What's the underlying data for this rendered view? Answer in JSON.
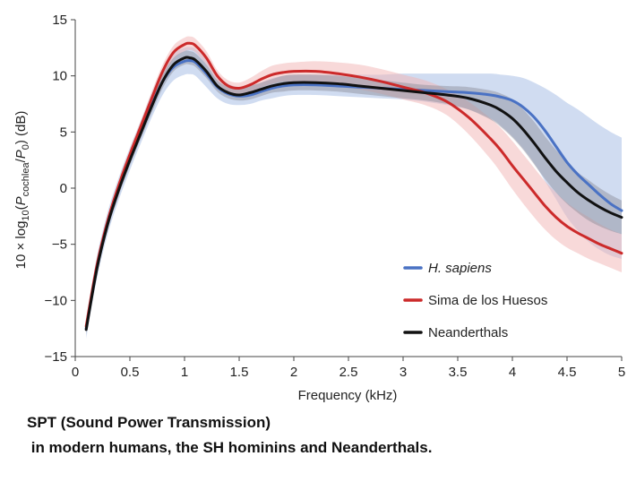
{
  "chart_data": {
    "type": "line",
    "title": "",
    "xlabel": "Frequency (kHz)",
    "ylabel": "10 × log10(Pcochlea/P0) (dB)",
    "xlim": [
      0,
      5
    ],
    "ylim": [
      -15,
      15
    ],
    "xticks": [
      0,
      0.5,
      1,
      1.5,
      2,
      2.5,
      3,
      3.5,
      4,
      4.5,
      5
    ],
    "xtick_labels": [
      "0",
      "0.5",
      "1",
      "1.5",
      "2",
      "2.5",
      "3",
      "3.5",
      "4",
      "4.5",
      "5"
    ],
    "yticks": [
      15,
      10,
      5,
      0,
      -5,
      -10,
      -15
    ],
    "ytick_labels": [
      "15",
      "10",
      "5",
      "0",
      "−5",
      "−10",
      "−15"
    ],
    "legend_position": "bottom-right",
    "series": [
      {
        "name": "H. sapiens",
        "color": "#4a72c4",
        "band_color": "#a9bfe6",
        "x": [
          0.1,
          0.2,
          0.3,
          0.4,
          0.5,
          0.6,
          0.7,
          0.8,
          0.9,
          1.0,
          1.05,
          1.1,
          1.2,
          1.3,
          1.4,
          1.5,
          1.6,
          1.7,
          1.8,
          1.9,
          2.0,
          2.2,
          2.4,
          2.6,
          2.8,
          3.0,
          3.2,
          3.4,
          3.6,
          3.8,
          3.9,
          4.0,
          4.1,
          4.2,
          4.3,
          4.4,
          4.5,
          4.6,
          4.7,
          4.8,
          4.9,
          5.0
        ],
        "y": [
          -12.5,
          -7.0,
          -3.0,
          0.0,
          2.6,
          5.0,
          7.4,
          9.5,
          10.8,
          11.3,
          11.35,
          11.2,
          10.2,
          9.0,
          8.4,
          8.2,
          8.3,
          8.6,
          8.9,
          9.1,
          9.2,
          9.2,
          9.1,
          9.0,
          8.9,
          8.8,
          8.7,
          8.6,
          8.5,
          8.3,
          8.1,
          7.8,
          7.2,
          6.3,
          5.1,
          3.7,
          2.3,
          1.2,
          0.3,
          -0.6,
          -1.4,
          -2.0
        ],
        "lower": [
          -13.4,
          -8.0,
          -4.0,
          -1.0,
          1.6,
          4.0,
          6.3,
          8.3,
          9.6,
          10.1,
          10.15,
          10.0,
          9.0,
          8.0,
          7.5,
          7.4,
          7.5,
          7.8,
          8.0,
          8.2,
          8.3,
          8.3,
          8.2,
          8.1,
          8.0,
          7.9,
          7.7,
          7.4,
          7.0,
          6.2,
          5.5,
          4.6,
          3.5,
          2.2,
          0.6,
          -1.0,
          -2.6,
          -3.8,
          -4.8,
          -5.5,
          -6.0,
          -6.3
        ],
        "upper": [
          -11.6,
          -6.0,
          -2.0,
          1.0,
          3.6,
          6.0,
          8.5,
          10.6,
          12.0,
          12.5,
          12.55,
          12.4,
          11.4,
          10.0,
          9.3,
          9.0,
          9.1,
          9.4,
          9.8,
          10.0,
          10.1,
          10.1,
          10.1,
          10.1,
          10.1,
          10.2,
          10.2,
          10.2,
          10.2,
          10.2,
          10.1,
          10.0,
          9.8,
          9.4,
          8.9,
          8.3,
          7.6,
          7.0,
          6.3,
          5.6,
          5.0,
          4.5
        ]
      },
      {
        "name": "Sima de los Huesos",
        "color": "#cc2a2a",
        "band_color": "#f2b3b3",
        "x": [
          0.1,
          0.2,
          0.3,
          0.4,
          0.5,
          0.6,
          0.7,
          0.8,
          0.9,
          1.0,
          1.05,
          1.1,
          1.2,
          1.3,
          1.4,
          1.5,
          1.6,
          1.7,
          1.8,
          1.9,
          2.0,
          2.2,
          2.4,
          2.6,
          2.8,
          3.0,
          3.2,
          3.4,
          3.6,
          3.8,
          3.9,
          4.0,
          4.1,
          4.2,
          4.3,
          4.4,
          4.5,
          4.6,
          4.7,
          4.8,
          4.9,
          5.0
        ],
        "y": [
          -12.3,
          -6.8,
          -2.8,
          0.3,
          3.0,
          5.5,
          8.0,
          10.4,
          12.1,
          12.8,
          12.9,
          12.7,
          11.6,
          10.0,
          9.1,
          8.9,
          9.2,
          9.7,
          10.1,
          10.3,
          10.4,
          10.4,
          10.2,
          9.9,
          9.5,
          9.0,
          8.5,
          7.7,
          6.3,
          4.4,
          3.3,
          2.0,
          0.8,
          -0.4,
          -1.6,
          -2.6,
          -3.4,
          -4.0,
          -4.5,
          -5.0,
          -5.4,
          -5.8
        ],
        "lower": [
          -12.7,
          -7.2,
          -3.2,
          -0.2,
          2.5,
          5.0,
          7.4,
          9.8,
          11.5,
          12.2,
          12.3,
          12.1,
          11.0,
          9.5,
          8.6,
          8.4,
          8.6,
          9.0,
          9.3,
          9.5,
          9.5,
          9.4,
          9.1,
          8.8,
          8.4,
          7.9,
          7.4,
          6.5,
          4.8,
          2.6,
          1.3,
          -0.1,
          -1.4,
          -2.6,
          -3.7,
          -4.6,
          -5.3,
          -5.8,
          -6.3,
          -6.7,
          -7.1,
          -7.5
        ],
        "upper": [
          -11.9,
          -6.4,
          -2.4,
          0.8,
          3.5,
          6.0,
          8.6,
          11.0,
          12.7,
          13.4,
          13.5,
          13.3,
          12.2,
          10.5,
          9.6,
          9.4,
          9.8,
          10.4,
          10.9,
          11.1,
          11.2,
          11.3,
          11.2,
          11.0,
          10.6,
          10.1,
          9.6,
          8.8,
          7.7,
          6.2,
          5.3,
          4.2,
          3.0,
          1.8,
          0.6,
          -0.4,
          -1.3,
          -2.0,
          -2.6,
          -3.2,
          -3.7,
          -4.1
        ]
      },
      {
        "name": "Neanderthals",
        "color": "#111111",
        "band_color": "#8a8a96",
        "x": [
          0.1,
          0.2,
          0.3,
          0.4,
          0.5,
          0.6,
          0.7,
          0.8,
          0.9,
          1.0,
          1.05,
          1.1,
          1.2,
          1.3,
          1.4,
          1.5,
          1.6,
          1.7,
          1.8,
          1.9,
          2.0,
          2.2,
          2.4,
          2.6,
          2.8,
          3.0,
          3.2,
          3.4,
          3.6,
          3.8,
          3.9,
          4.0,
          4.1,
          4.2,
          4.3,
          4.4,
          4.5,
          4.6,
          4.7,
          4.8,
          4.9,
          5.0
        ],
        "y": [
          -12.6,
          -7.1,
          -3.1,
          -0.1,
          2.5,
          4.9,
          7.3,
          9.5,
          11.0,
          11.6,
          11.6,
          11.4,
          10.4,
          9.1,
          8.5,
          8.3,
          8.5,
          8.8,
          9.1,
          9.3,
          9.4,
          9.4,
          9.3,
          9.1,
          8.9,
          8.7,
          8.5,
          8.3,
          8.0,
          7.4,
          6.9,
          6.2,
          5.2,
          4.0,
          2.7,
          1.5,
          0.5,
          -0.4,
          -1.1,
          -1.7,
          -2.2,
          -2.6
        ],
        "lower": [
          -13.0,
          -7.6,
          -3.6,
          -0.6,
          2.0,
          4.4,
          6.7,
          8.9,
          10.4,
          11.0,
          11.0,
          10.8,
          9.8,
          8.6,
          8.0,
          7.8,
          7.9,
          8.2,
          8.5,
          8.6,
          8.7,
          8.7,
          8.6,
          8.4,
          8.2,
          8.0,
          7.8,
          7.5,
          7.0,
          6.1,
          5.4,
          4.5,
          3.4,
          2.1,
          0.8,
          -0.4,
          -1.4,
          -2.2,
          -2.9,
          -3.4,
          -3.8,
          -4.1
        ],
        "upper": [
          -12.2,
          -6.6,
          -2.6,
          0.4,
          3.0,
          5.4,
          7.9,
          10.1,
          11.6,
          12.2,
          12.2,
          12.0,
          11.0,
          9.6,
          9.0,
          8.8,
          9.1,
          9.4,
          9.7,
          10.0,
          10.1,
          10.1,
          10.0,
          9.8,
          9.6,
          9.4,
          9.2,
          9.1,
          9.0,
          8.7,
          8.4,
          7.9,
          7.0,
          5.9,
          4.6,
          3.4,
          2.4,
          1.4,
          0.7,
          0.0,
          -0.6,
          -1.1
        ]
      }
    ]
  },
  "caption": {
    "line1": "SPT (Sound Power Transmission)",
    "line2": " in modern humans, the SH hominins and Neanderthals."
  }
}
